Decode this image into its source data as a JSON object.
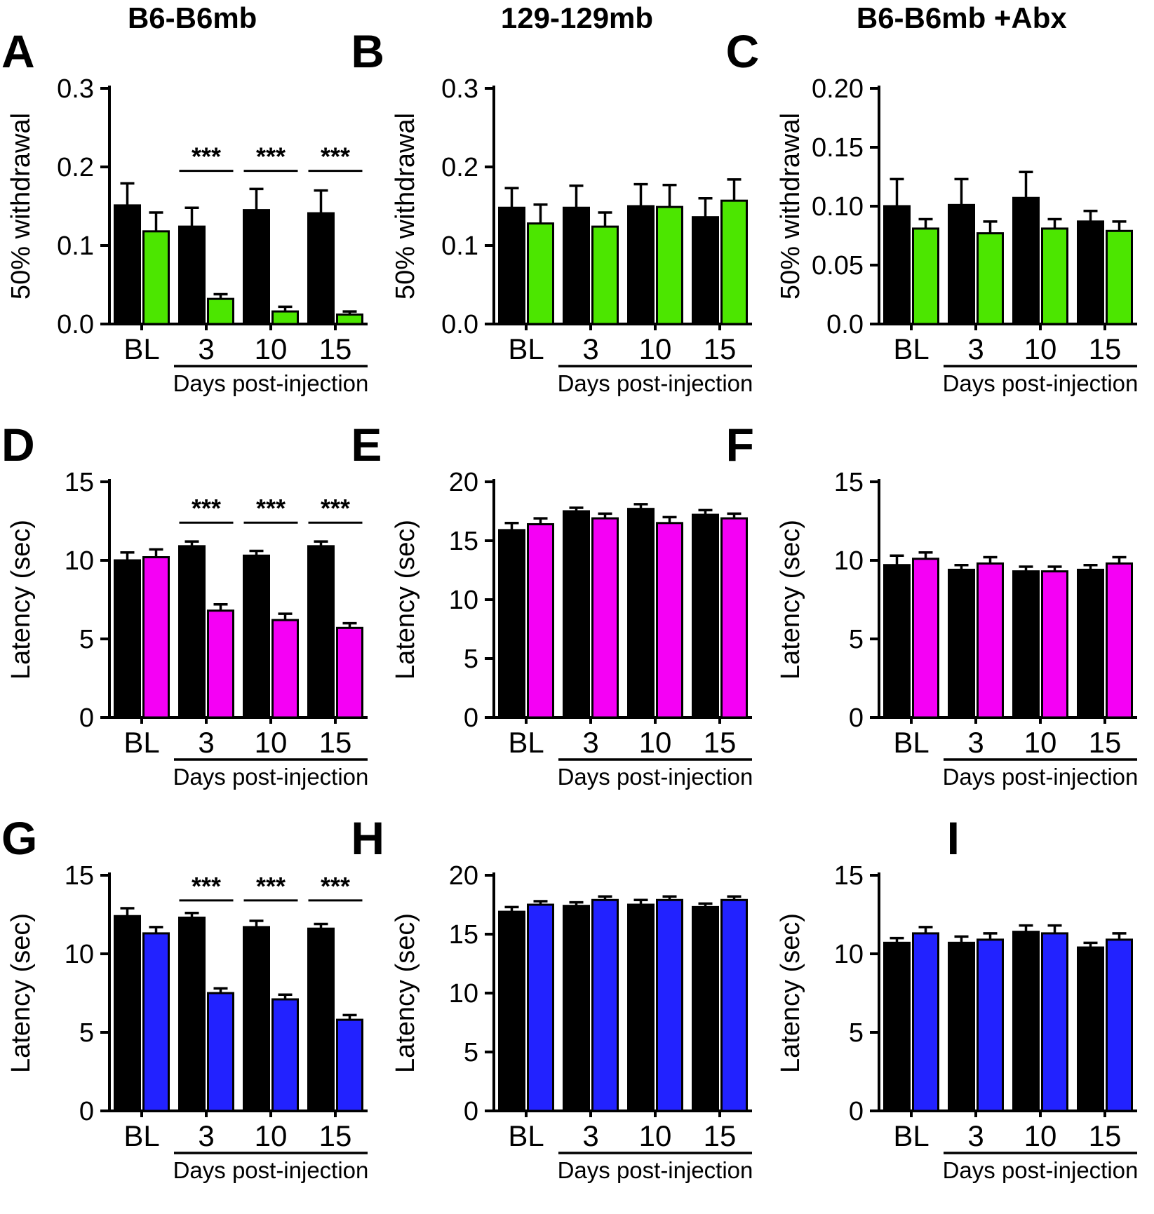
{
  "figure": {
    "column_titles": [
      "B6-B6mb",
      "129-129mb",
      "B6-B6mb +Abx"
    ]
  },
  "chart_data": [
    {
      "panel": "A",
      "type": "bar",
      "column": "B6-B6mb",
      "ylabel": "50% withdrawal",
      "xlabel": "Days post-injection",
      "categories": [
        "BL",
        "3",
        "10",
        "15"
      ],
      "ylim": [
        0,
        0.3
      ],
      "yticks": [
        0,
        0.1,
        0.2,
        0.3
      ],
      "ytick_labels": [
        "0.0",
        "0.1",
        "0.2",
        "0.3"
      ],
      "series": [
        {
          "name": "black",
          "color": "#000000",
          "values": [
            0.151,
            0.124,
            0.145,
            0.141
          ],
          "errors": [
            0.028,
            0.024,
            0.027,
            0.029
          ]
        },
        {
          "name": "green",
          "color": "#4CE600",
          "values": [
            0.118,
            0.032,
            0.016,
            0.012
          ],
          "errors": [
            0.024,
            0.006,
            0.006,
            0.004
          ]
        }
      ],
      "significance": [
        {
          "label": "***",
          "categories": [
            "3",
            "10",
            "15"
          ],
          "y": 0.195
        }
      ]
    },
    {
      "panel": "B",
      "type": "bar",
      "column": "129-129mb",
      "ylabel": "50% withdrawal",
      "xlabel": "Days post-injection",
      "categories": [
        "BL",
        "3",
        "10",
        "15"
      ],
      "ylim": [
        0,
        0.3
      ],
      "yticks": [
        0,
        0.1,
        0.2,
        0.3
      ],
      "ytick_labels": [
        "0.0",
        "0.1",
        "0.2",
        "0.3"
      ],
      "series": [
        {
          "name": "black",
          "color": "#000000",
          "values": [
            0.148,
            0.148,
            0.15,
            0.136
          ],
          "errors": [
            0.025,
            0.028,
            0.028,
            0.024
          ]
        },
        {
          "name": "green",
          "color": "#4CE600",
          "values": [
            0.128,
            0.124,
            0.149,
            0.157
          ],
          "errors": [
            0.024,
            0.018,
            0.028,
            0.027
          ]
        }
      ],
      "significance": []
    },
    {
      "panel": "C",
      "type": "bar",
      "column": "B6-B6mb +Abx",
      "ylabel": "50% withdrawal",
      "xlabel": "Days post-injection",
      "categories": [
        "BL",
        "3",
        "10",
        "15"
      ],
      "ylim": [
        0,
        0.2
      ],
      "yticks": [
        0,
        0.05,
        0.1,
        0.15,
        0.2
      ],
      "ytick_labels": [
        "0.0",
        "0.05",
        "0.10",
        "0.15",
        "0.20"
      ],
      "series": [
        {
          "name": "black",
          "color": "#000000",
          "values": [
            0.1,
            0.101,
            0.107,
            0.087
          ],
          "errors": [
            0.023,
            0.022,
            0.022,
            0.009
          ]
        },
        {
          "name": "green",
          "color": "#4CE600",
          "values": [
            0.081,
            0.077,
            0.081,
            0.079
          ],
          "errors": [
            0.008,
            0.01,
            0.008,
            0.008
          ]
        }
      ],
      "significance": []
    },
    {
      "panel": "D",
      "type": "bar",
      "column": "B6-B6mb",
      "ylabel": "Latency (sec)",
      "xlabel": "Days post-injection",
      "categories": [
        "BL",
        "3",
        "10",
        "15"
      ],
      "ylim": [
        0,
        15
      ],
      "yticks": [
        0,
        5,
        10,
        15
      ],
      "ytick_labels": [
        "0",
        "5",
        "10",
        "15"
      ],
      "series": [
        {
          "name": "black",
          "color": "#000000",
          "values": [
            10.0,
            10.9,
            10.3,
            10.9
          ],
          "errors": [
            0.5,
            0.3,
            0.3,
            0.3
          ]
        },
        {
          "name": "magenta",
          "color": "#F500F5",
          "values": [
            10.2,
            6.8,
            6.2,
            5.7
          ],
          "errors": [
            0.5,
            0.4,
            0.4,
            0.3
          ]
        }
      ],
      "significance": [
        {
          "label": "***",
          "categories": [
            "3",
            "10",
            "15"
          ],
          "y": 12.4
        }
      ]
    },
    {
      "panel": "E",
      "type": "bar",
      "column": "129-129mb",
      "ylabel": "Latency (sec)",
      "xlabel": "Days post-injection",
      "categories": [
        "BL",
        "3",
        "10",
        "15"
      ],
      "ylim": [
        0,
        20
      ],
      "yticks": [
        0,
        5,
        10,
        15,
        20
      ],
      "ytick_labels": [
        "0",
        "5",
        "10",
        "15",
        "20"
      ],
      "series": [
        {
          "name": "black",
          "color": "#000000",
          "values": [
            15.9,
            17.5,
            17.7,
            17.2
          ],
          "errors": [
            0.6,
            0.3,
            0.4,
            0.4
          ]
        },
        {
          "name": "magenta",
          "color": "#F500F5",
          "values": [
            16.4,
            16.9,
            16.5,
            16.9
          ],
          "errors": [
            0.5,
            0.4,
            0.5,
            0.4
          ]
        }
      ],
      "significance": []
    },
    {
      "panel": "F",
      "type": "bar",
      "column": "B6-B6mb +Abx",
      "ylabel": "Latency (sec)",
      "xlabel": "Days post-injection",
      "categories": [
        "BL",
        "3",
        "10",
        "15"
      ],
      "ylim": [
        0,
        15
      ],
      "yticks": [
        0,
        5,
        10,
        15
      ],
      "ytick_labels": [
        "0",
        "5",
        "10",
        "15"
      ],
      "series": [
        {
          "name": "black",
          "color": "#000000",
          "values": [
            9.7,
            9.4,
            9.3,
            9.4
          ],
          "errors": [
            0.6,
            0.3,
            0.3,
            0.3
          ]
        },
        {
          "name": "magenta",
          "color": "#F500F5",
          "values": [
            10.1,
            9.8,
            9.3,
            9.8
          ],
          "errors": [
            0.4,
            0.4,
            0.3,
            0.4
          ]
        }
      ],
      "significance": []
    },
    {
      "panel": "G",
      "type": "bar",
      "column": "B6-B6mb",
      "ylabel": "Latency (sec)",
      "xlabel": "Days post-injection",
      "categories": [
        "BL",
        "3",
        "10",
        "15"
      ],
      "ylim": [
        0,
        15
      ],
      "yticks": [
        0,
        5,
        10,
        15
      ],
      "ytick_labels": [
        "0",
        "5",
        "10",
        "15"
      ],
      "series": [
        {
          "name": "black",
          "color": "#000000",
          "values": [
            12.4,
            12.3,
            11.7,
            11.6
          ],
          "errors": [
            0.5,
            0.3,
            0.4,
            0.3
          ]
        },
        {
          "name": "blue",
          "color": "#2222FF",
          "values": [
            11.3,
            7.5,
            7.1,
            5.8
          ],
          "errors": [
            0.4,
            0.3,
            0.3,
            0.3
          ]
        }
      ],
      "significance": [
        {
          "label": "***",
          "categories": [
            "3",
            "10",
            "15"
          ],
          "y": 13.4
        }
      ]
    },
    {
      "panel": "H",
      "type": "bar",
      "column": "129-129mb",
      "ylabel": "Latency (sec)",
      "xlabel": "Days post-injection",
      "categories": [
        "BL",
        "3",
        "10",
        "15"
      ],
      "ylim": [
        0,
        20
      ],
      "yticks": [
        0,
        5,
        10,
        15,
        20
      ],
      "ytick_labels": [
        "0",
        "5",
        "10",
        "15",
        "20"
      ],
      "series": [
        {
          "name": "black",
          "color": "#000000",
          "values": [
            16.9,
            17.4,
            17.5,
            17.3
          ],
          "errors": [
            0.4,
            0.3,
            0.4,
            0.3
          ]
        },
        {
          "name": "blue",
          "color": "#2222FF",
          "values": [
            17.5,
            17.9,
            17.9,
            17.9
          ],
          "errors": [
            0.3,
            0.3,
            0.3,
            0.3
          ]
        }
      ],
      "significance": []
    },
    {
      "panel": "I",
      "type": "bar",
      "column": "B6-B6mb +Abx",
      "ylabel": "Latency (sec)",
      "xlabel": "Days post-injection",
      "categories": [
        "BL",
        "3",
        "10",
        "15"
      ],
      "ylim": [
        0,
        15
      ],
      "yticks": [
        0,
        5,
        10,
        15
      ],
      "ytick_labels": [
        "0",
        "5",
        "10",
        "15"
      ],
      "series": [
        {
          "name": "black",
          "color": "#000000",
          "values": [
            10.7,
            10.7,
            11.4,
            10.4
          ],
          "errors": [
            0.3,
            0.4,
            0.4,
            0.3
          ]
        },
        {
          "name": "blue",
          "color": "#2222FF",
          "values": [
            11.3,
            10.9,
            11.3,
            10.9
          ],
          "errors": [
            0.4,
            0.4,
            0.5,
            0.4
          ]
        }
      ],
      "significance": []
    }
  ]
}
